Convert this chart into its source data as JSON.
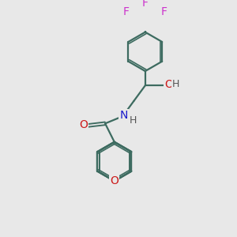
{
  "bg_color": "#e8e8e8",
  "bond_color": "#3d6b60",
  "N_color": "#1a1acc",
  "O_color": "#cc1a1a",
  "F_color": "#cc33cc",
  "H_color": "#555555",
  "bond_width": 1.6,
  "fig_width": 3.0,
  "fig_height": 3.0,
  "dpi": 100,
  "xlim": [
    0,
    10
  ],
  "ylim": [
    0,
    10
  ]
}
